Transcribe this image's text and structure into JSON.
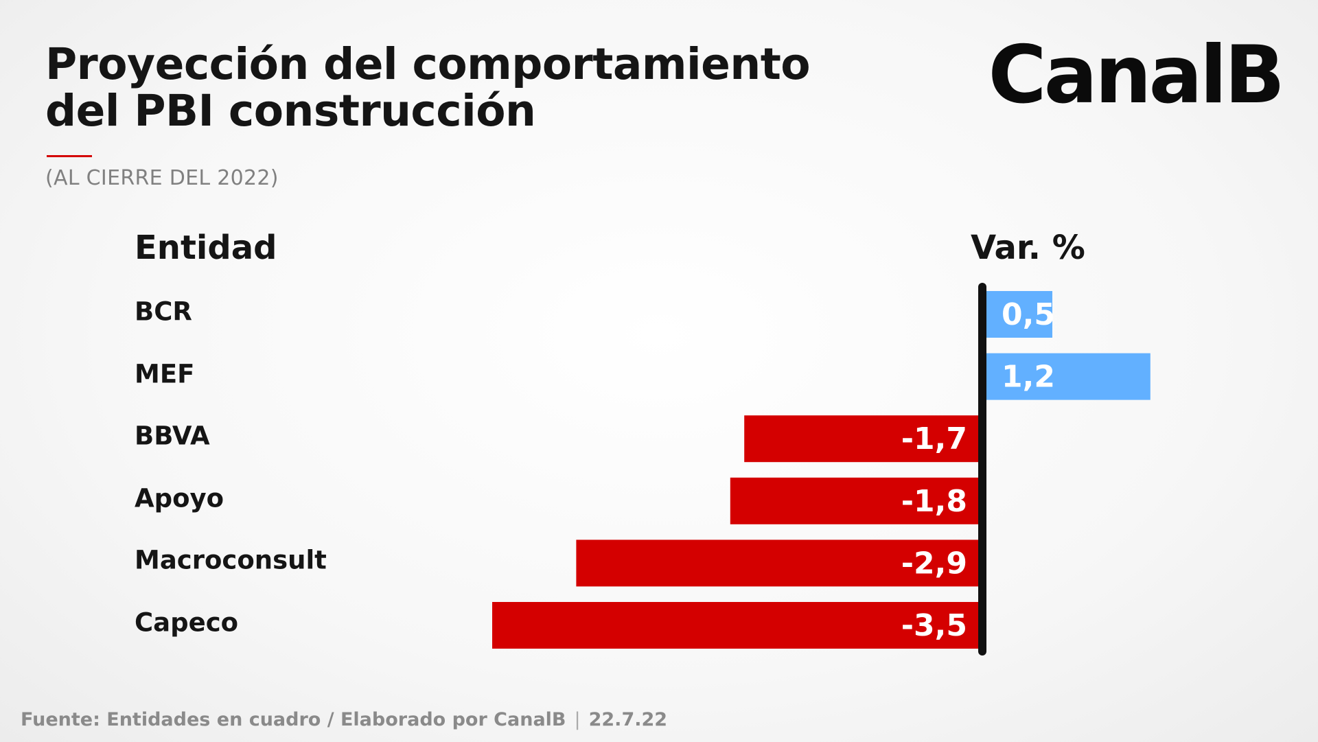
{
  "header": {
    "title": "Proyección del comportamiento del PBI construcción",
    "subtitle": "(AL CIERRE DEL 2022)",
    "brand": "CanalB"
  },
  "columns": {
    "entity": "Entidad",
    "value": "Var. %"
  },
  "chart_data": {
    "type": "bar",
    "orientation": "horizontal",
    "categories": [
      "BCR",
      "MEF",
      "BBVA",
      "Apoyo",
      "Macroconsult",
      "Capeco"
    ],
    "values": [
      0.5,
      1.2,
      -1.7,
      -1.8,
      -2.9,
      -3.5
    ],
    "value_labels": [
      "0,5",
      "1,2",
      "-1,7",
      "-1,8",
      "-2,9",
      "-3,5"
    ],
    "title": "Proyección del comportamiento del PBI construcción",
    "subtitle": "(AL CIERRE DEL 2022)",
    "xlabel": "Var. %",
    "ylabel": "Entidad",
    "xlim": [
      -3.5,
      1.2
    ],
    "grid": false,
    "legend": "none",
    "colors": {
      "positive": "#62b0ff",
      "negative": "#d40000",
      "axis": "#111111"
    }
  },
  "footer": {
    "source": "Fuente: Entidades en cuadro / Elaborado por CanalB",
    "separator": "|",
    "date": "22.7.22"
  }
}
